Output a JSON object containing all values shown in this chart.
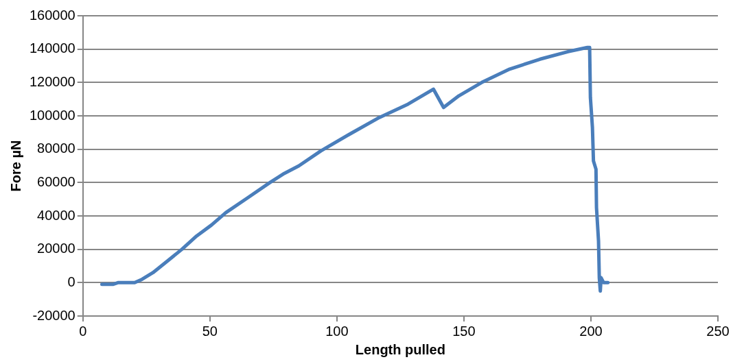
{
  "chart_data": {
    "type": "line",
    "xlabel": "Length pulled",
    "ylabel": "Fore µN",
    "xlim": [
      0,
      250
    ],
    "xticks": [
      0,
      50,
      100,
      150,
      200,
      250
    ],
    "ylim": [
      -20000,
      160000
    ],
    "yticks": [
      -20000,
      0,
      20000,
      40000,
      60000,
      80000,
      100000,
      120000,
      140000,
      160000
    ],
    "grid": "y",
    "legend": false,
    "marker": "none",
    "line_style": "solid",
    "series": [
      {
        "color": "#4a7ebb",
        "x": [
          7.5,
          11.8,
          13.8,
          20.4,
          23.3,
          27.6,
          33.3,
          39,
          44.8,
          50.6,
          56.3,
          65,
          73.6,
          79.3,
          85,
          93.7,
          105,
          116.7,
          128,
          138,
          142,
          148,
          157,
          168,
          180,
          191,
          198.6,
          199.5,
          199.8,
          200.6,
          201,
          202,
          202.2,
          203,
          203.3,
          203.7,
          204,
          205,
          206.7
        ],
        "values": [
          -1000,
          -1000,
          0,
          0,
          2000,
          6000,
          13000,
          20000,
          28000,
          34500,
          42000,
          51000,
          60000,
          65500,
          70000,
          79000,
          89000,
          99000,
          107000,
          116000,
          105000,
          112000,
          120000,
          128000,
          134000,
          138500,
          141000,
          141000,
          111000,
          93000,
          73000,
          68000,
          45000,
          25000,
          3000,
          -5000,
          3000,
          0,
          0
        ]
      }
    ]
  }
}
